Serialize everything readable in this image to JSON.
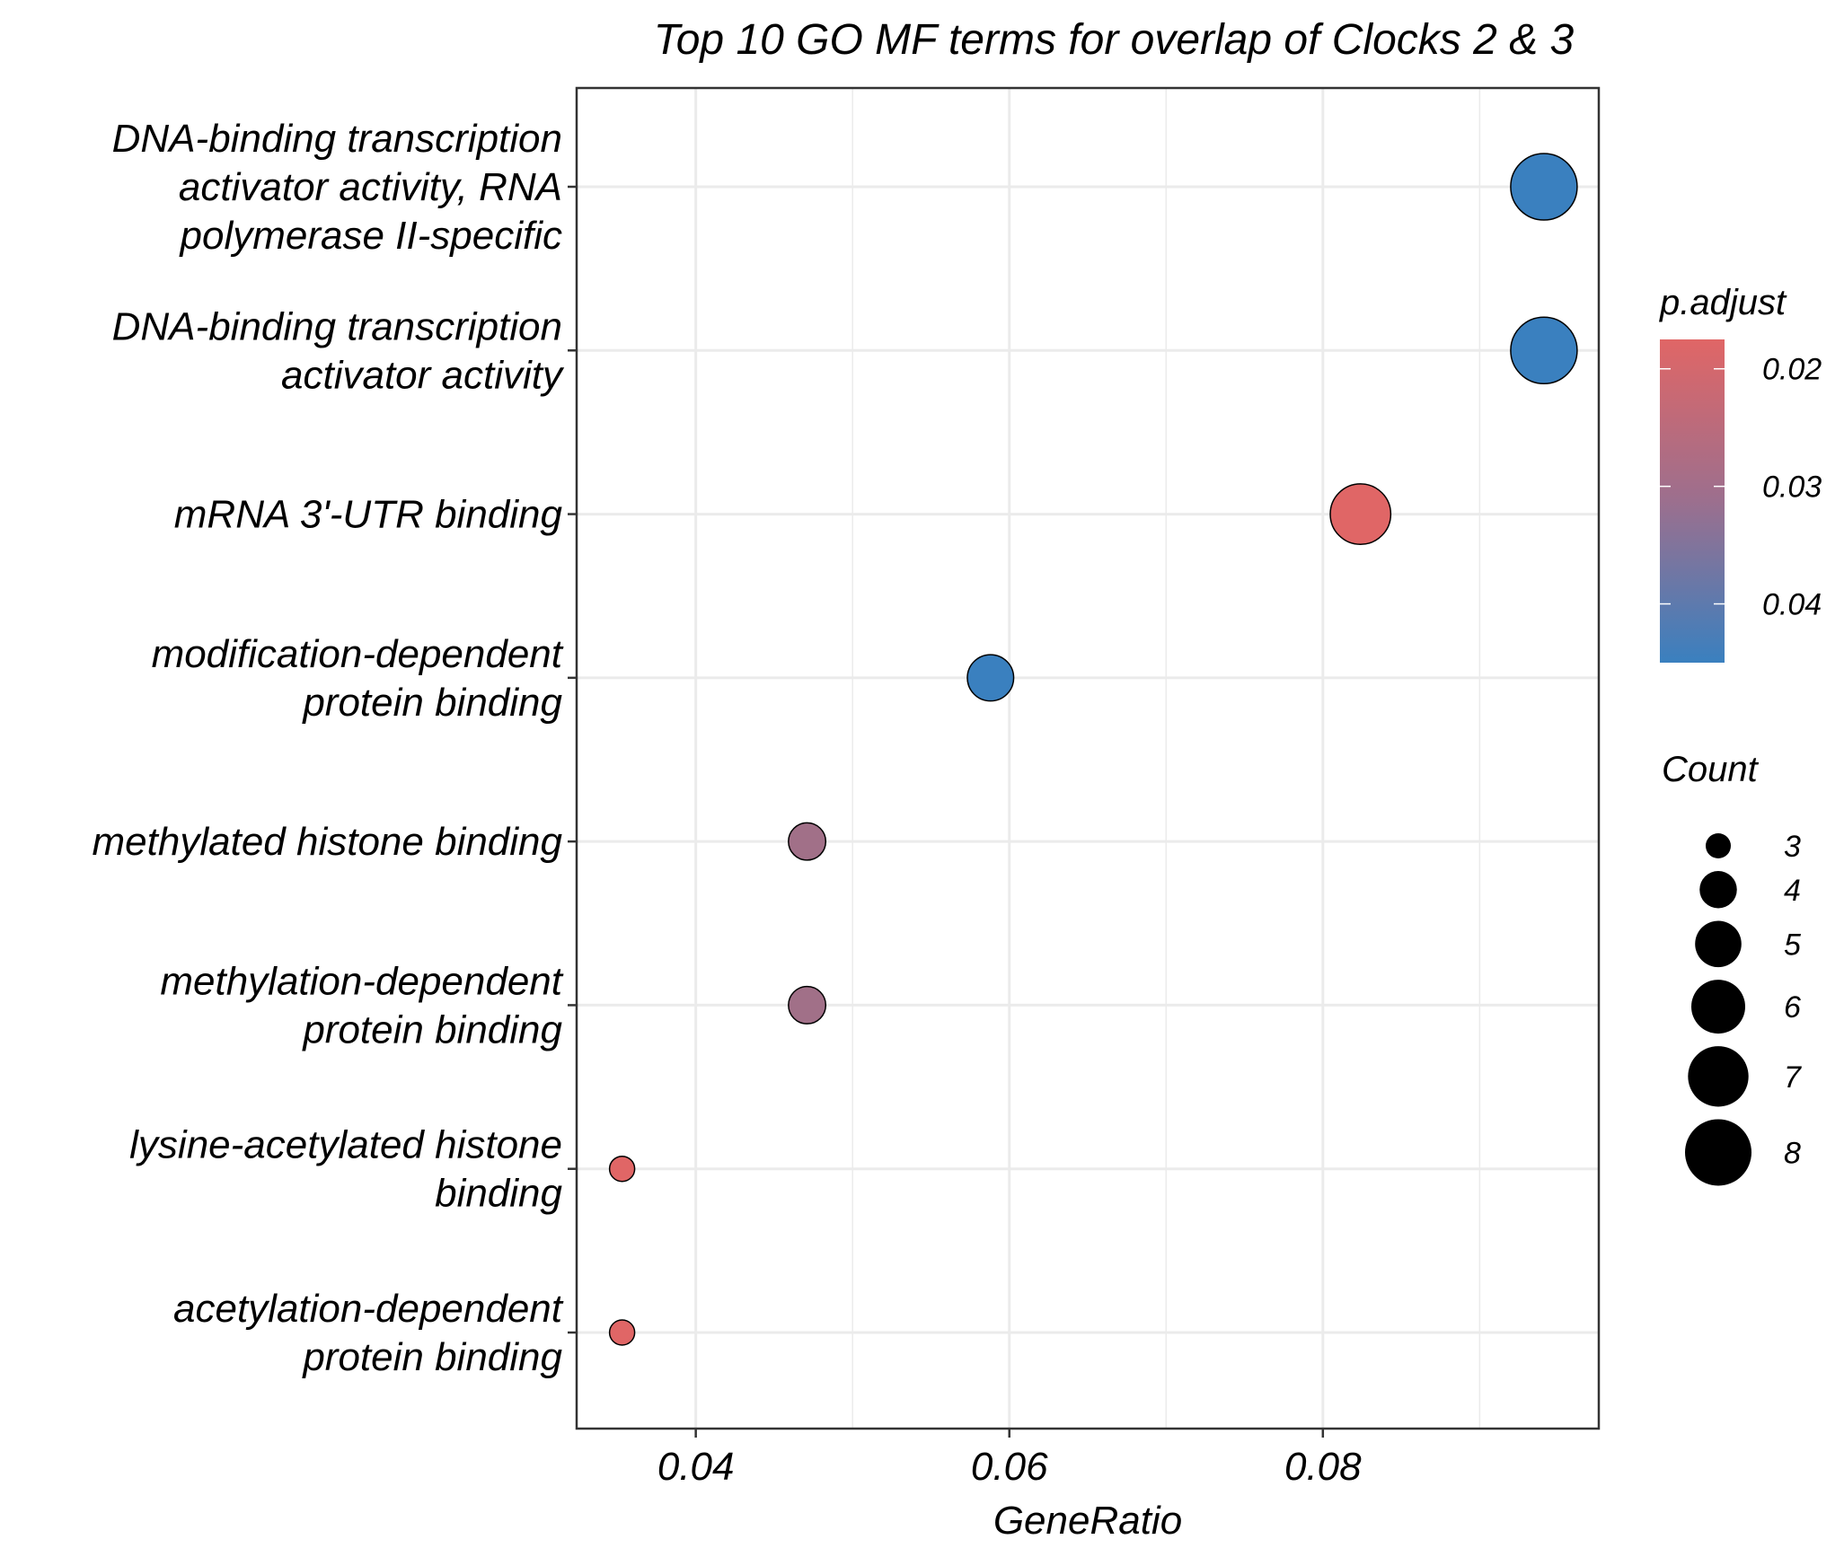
{
  "chart_data": {
    "type": "scatter",
    "title": "Top 10 GO MF terms for overlap of Clocks 2 & 3",
    "xlabel": "GeneRatio",
    "ylabel": "",
    "xlim": [
      0.0324,
      0.0976
    ],
    "x_ticks": [
      0.04,
      0.06,
      0.08
    ],
    "x_tick_labels": [
      "0.04",
      "0.06",
      "0.08"
    ],
    "grid": true,
    "categories": [
      [
        "DNA-binding transcription",
        "activator activity, RNA",
        "polymerase II-specific"
      ],
      [
        "DNA-binding transcription",
        "activator activity"
      ],
      [
        "mRNA 3'-UTR binding"
      ],
      [
        "modification-dependent",
        "protein binding"
      ],
      [
        "methylated histone binding"
      ],
      [
        "methylation-dependent",
        "protein binding"
      ],
      [
        "lysine-acetylated histone",
        "binding"
      ],
      [
        "acetylation-dependent",
        "protein binding"
      ]
    ],
    "points": [
      {
        "x": 0.0941,
        "count": 8,
        "p_adjust": 0.045
      },
      {
        "x": 0.0941,
        "count": 8,
        "p_adjust": 0.045
      },
      {
        "x": 0.0824,
        "count": 7,
        "p_adjust": 0.0175
      },
      {
        "x": 0.0588,
        "count": 5,
        "p_adjust": 0.045
      },
      {
        "x": 0.0471,
        "count": 4,
        "p_adjust": 0.028
      },
      {
        "x": 0.0471,
        "count": 4,
        "p_adjust": 0.028
      },
      {
        "x": 0.0353,
        "count": 3,
        "p_adjust": 0.0175
      },
      {
        "x": 0.0353,
        "count": 3,
        "p_adjust": 0.0175
      }
    ],
    "color_legend": {
      "title": "p.adjust",
      "range": [
        0.0175,
        0.045
      ],
      "ticks": [
        0.02,
        0.03,
        0.04
      ],
      "tick_labels": [
        "0.02",
        "0.03",
        "0.04"
      ],
      "low_color": "#E06666",
      "high_color": "#3A80BF"
    },
    "size_legend": {
      "title": "Count",
      "values": [
        3,
        4,
        5,
        6,
        7,
        8
      ],
      "labels": [
        "3",
        "4",
        "5",
        "6",
        "7",
        "8"
      ]
    },
    "legend_position": "right"
  }
}
